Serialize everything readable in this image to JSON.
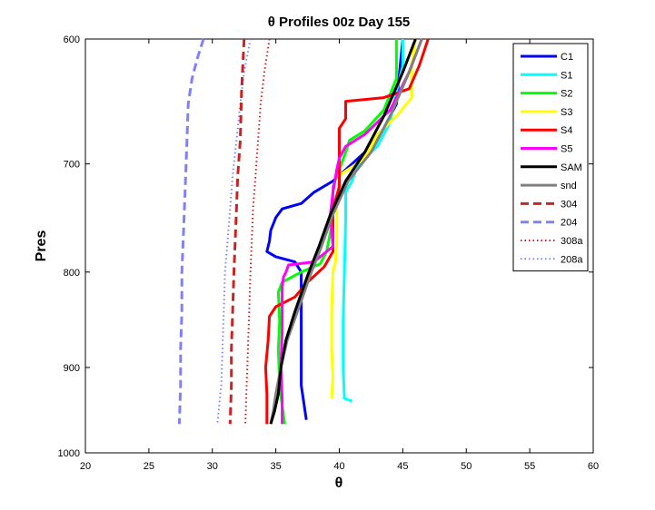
{
  "chart_data": {
    "type": "line",
    "title": "θ Profiles 00z Day 155",
    "xlabel": "θ",
    "ylabel": "Pres",
    "xlim": [
      20,
      60
    ],
    "ylim": [
      600,
      1000
    ],
    "y_reversed": true,
    "y_scale": "log",
    "xticks": [
      20,
      25,
      30,
      35,
      40,
      45,
      50,
      55,
      60
    ],
    "yticks": [
      600,
      700,
      800,
      900,
      1000
    ],
    "grid": false,
    "legend_position": "top-right",
    "series": [
      {
        "name": "C1",
        "color": "#0000ff",
        "style": "solid",
        "width": 3,
        "points": [
          [
            45,
            600
          ],
          [
            44.5,
            650
          ],
          [
            43.5,
            670
          ],
          [
            42,
            690
          ],
          [
            40.5,
            705
          ],
          [
            39.5,
            715
          ],
          [
            38,
            725
          ],
          [
            37,
            735
          ],
          [
            35.5,
            740
          ],
          [
            35,
            748
          ],
          [
            34.6,
            760
          ],
          [
            34.5,
            770
          ],
          [
            34.3,
            780
          ],
          [
            35,
            785
          ],
          [
            36.5,
            790
          ],
          [
            37,
            800
          ],
          [
            37,
            840
          ],
          [
            37,
            880
          ],
          [
            37,
            920
          ],
          [
            37.3,
            950
          ],
          [
            37.4,
            960
          ]
        ]
      },
      {
        "name": "S1",
        "color": "#00ffff",
        "style": "solid",
        "width": 3,
        "points": [
          [
            45,
            600
          ],
          [
            45,
            620
          ],
          [
            44.5,
            640
          ],
          [
            44,
            665
          ],
          [
            43,
            685
          ],
          [
            41.5,
            700
          ],
          [
            41,
            715
          ],
          [
            40.5,
            725
          ],
          [
            40.5,
            750
          ],
          [
            40.4,
            800
          ],
          [
            40.3,
            850
          ],
          [
            40.3,
            900
          ],
          [
            40.4,
            935
          ],
          [
            41,
            938
          ]
        ]
      },
      {
        "name": "S2",
        "color": "#00ff00",
        "style": "solid",
        "width": 3,
        "points": [
          [
            44.5,
            600
          ],
          [
            44.5,
            630
          ],
          [
            43.5,
            655
          ],
          [
            42,
            672
          ],
          [
            40.8,
            680
          ],
          [
            40.5,
            690
          ],
          [
            40,
            705
          ],
          [
            39.5,
            720
          ],
          [
            39.5,
            750
          ],
          [
            39,
            780
          ],
          [
            38.5,
            792
          ],
          [
            37,
            800
          ],
          [
            35.5,
            810
          ],
          [
            35.2,
            820
          ],
          [
            35.3,
            850
          ],
          [
            35.2,
            880
          ],
          [
            35.3,
            920
          ],
          [
            35.6,
            955
          ],
          [
            35.7,
            965
          ]
        ]
      },
      {
        "name": "S3",
        "color": "#ffff00",
        "style": "solid",
        "width": 3,
        "points": [
          [
            46,
            600
          ],
          [
            45.7,
            620
          ],
          [
            45.7,
            645
          ],
          [
            44.5,
            660
          ],
          [
            43,
            675
          ],
          [
            42,
            695
          ],
          [
            40,
            710
          ],
          [
            39.8,
            740
          ],
          [
            39.8,
            770
          ],
          [
            39.7,
            790
          ],
          [
            39.5,
            800
          ],
          [
            39.4,
            840
          ],
          [
            39.4,
            880
          ],
          [
            39.5,
            910
          ],
          [
            39.4,
            935
          ]
        ]
      },
      {
        "name": "S4",
        "color": "#ff0000",
        "style": "solid",
        "width": 3,
        "points": [
          [
            47,
            600
          ],
          [
            46.3,
            620
          ],
          [
            45.5,
            638
          ],
          [
            43.5,
            645
          ],
          [
            40.5,
            648
          ],
          [
            40.5,
            662
          ],
          [
            40,
            670
          ],
          [
            40,
            700
          ],
          [
            40,
            720
          ],
          [
            39.5,
            740
          ],
          [
            39.5,
            760
          ],
          [
            39.5,
            780
          ],
          [
            38.8,
            795
          ],
          [
            37.5,
            810
          ],
          [
            36.5,
            825
          ],
          [
            35,
            835
          ],
          [
            34.5,
            845
          ],
          [
            34.4,
            870
          ],
          [
            34.2,
            900
          ],
          [
            34.3,
            930
          ],
          [
            34.3,
            965
          ]
        ]
      },
      {
        "name": "S5",
        "color": "#ff00ff",
        "style": "solid",
        "width": 3,
        "points": [
          [
            46.5,
            600
          ],
          [
            45.5,
            625
          ],
          [
            44,
            655
          ],
          [
            42,
            675
          ],
          [
            40.5,
            685
          ],
          [
            40,
            695
          ],
          [
            39.8,
            705
          ],
          [
            39.5,
            725
          ],
          [
            39.3,
            745
          ],
          [
            39.5,
            775
          ],
          [
            38,
            790
          ],
          [
            36,
            793
          ],
          [
            35.8,
            800
          ],
          [
            35.6,
            805
          ],
          [
            35.5,
            815
          ],
          [
            35.5,
            860
          ],
          [
            35.4,
            900
          ],
          [
            35.5,
            935
          ],
          [
            35.5,
            965
          ]
        ]
      },
      {
        "name": "SAM",
        "color": "#000000",
        "style": "solid",
        "width": 3,
        "points": [
          [
            46,
            600
          ],
          [
            45,
            625
          ],
          [
            43.5,
            660
          ],
          [
            42,
            690
          ],
          [
            40.5,
            715
          ],
          [
            39.3,
            745
          ],
          [
            38.4,
            775
          ],
          [
            37.6,
            800
          ],
          [
            36.5,
            840
          ],
          [
            35.8,
            870
          ],
          [
            35.4,
            900
          ],
          [
            35.2,
            930
          ],
          [
            34.9,
            950
          ],
          [
            34.7,
            960
          ],
          [
            34.6,
            965
          ]
        ]
      },
      {
        "name": "snd",
        "color": "#808080",
        "style": "solid",
        "width": 3,
        "points": [
          [
            46.5,
            600
          ],
          [
            45.5,
            625
          ],
          [
            44,
            660
          ],
          [
            42.5,
            690
          ],
          [
            40.7,
            715
          ],
          [
            39.5,
            745
          ],
          [
            38.6,
            775
          ],
          [
            37.8,
            800
          ],
          [
            36.7,
            840
          ],
          [
            35.9,
            870
          ],
          [
            35.4,
            900
          ],
          [
            35,
            930
          ],
          [
            34.8,
            950
          ],
          [
            34.6,
            965
          ]
        ]
      },
      {
        "name": "304",
        "color": "#cc2222",
        "style": "dashed",
        "width": 3,
        "points": [
          [
            32.5,
            600
          ],
          [
            32.3,
            640
          ],
          [
            32.2,
            680
          ],
          [
            32,
            710
          ],
          [
            31.9,
            740
          ],
          [
            31.8,
            770
          ],
          [
            31.7,
            800
          ],
          [
            31.6,
            840
          ],
          [
            31.5,
            880
          ],
          [
            31.5,
            920
          ],
          [
            31.4,
            965
          ]
        ]
      },
      {
        "name": "204",
        "color": "#8080ff",
        "style": "dashed",
        "width": 3,
        "points": [
          [
            29.3,
            600
          ],
          [
            28.8,
            615
          ],
          [
            28.4,
            630
          ],
          [
            28.1,
            650
          ],
          [
            28,
            680
          ],
          [
            27.9,
            710
          ],
          [
            27.8,
            740
          ],
          [
            27.7,
            770
          ],
          [
            27.6,
            800
          ],
          [
            27.6,
            840
          ],
          [
            27.5,
            880
          ],
          [
            27.5,
            920
          ],
          [
            27.4,
            965
          ]
        ]
      },
      {
        "name": "308a",
        "color": "#cc2222",
        "style": "dotted",
        "width": 2,
        "points": [
          [
            34.5,
            600
          ],
          [
            34.1,
            625
          ],
          [
            33.8,
            650
          ],
          [
            33.6,
            680
          ],
          [
            33.4,
            710
          ],
          [
            33.2,
            740
          ],
          [
            33.1,
            770
          ],
          [
            33,
            800
          ],
          [
            32.9,
            840
          ],
          [
            32.8,
            880
          ],
          [
            32.7,
            920
          ],
          [
            32.6,
            965
          ]
        ]
      },
      {
        "name": "208a",
        "color": "#8080ff",
        "style": "dotted",
        "width": 2,
        "points": [
          [
            33,
            600
          ],
          [
            32.5,
            625
          ],
          [
            32.2,
            650
          ],
          [
            31.9,
            680
          ],
          [
            31.6,
            710
          ],
          [
            31.4,
            740
          ],
          [
            31.2,
            770
          ],
          [
            31,
            800
          ],
          [
            30.9,
            840
          ],
          [
            30.8,
            880
          ],
          [
            30.7,
            920
          ],
          [
            30.4,
            965
          ]
        ]
      }
    ]
  }
}
